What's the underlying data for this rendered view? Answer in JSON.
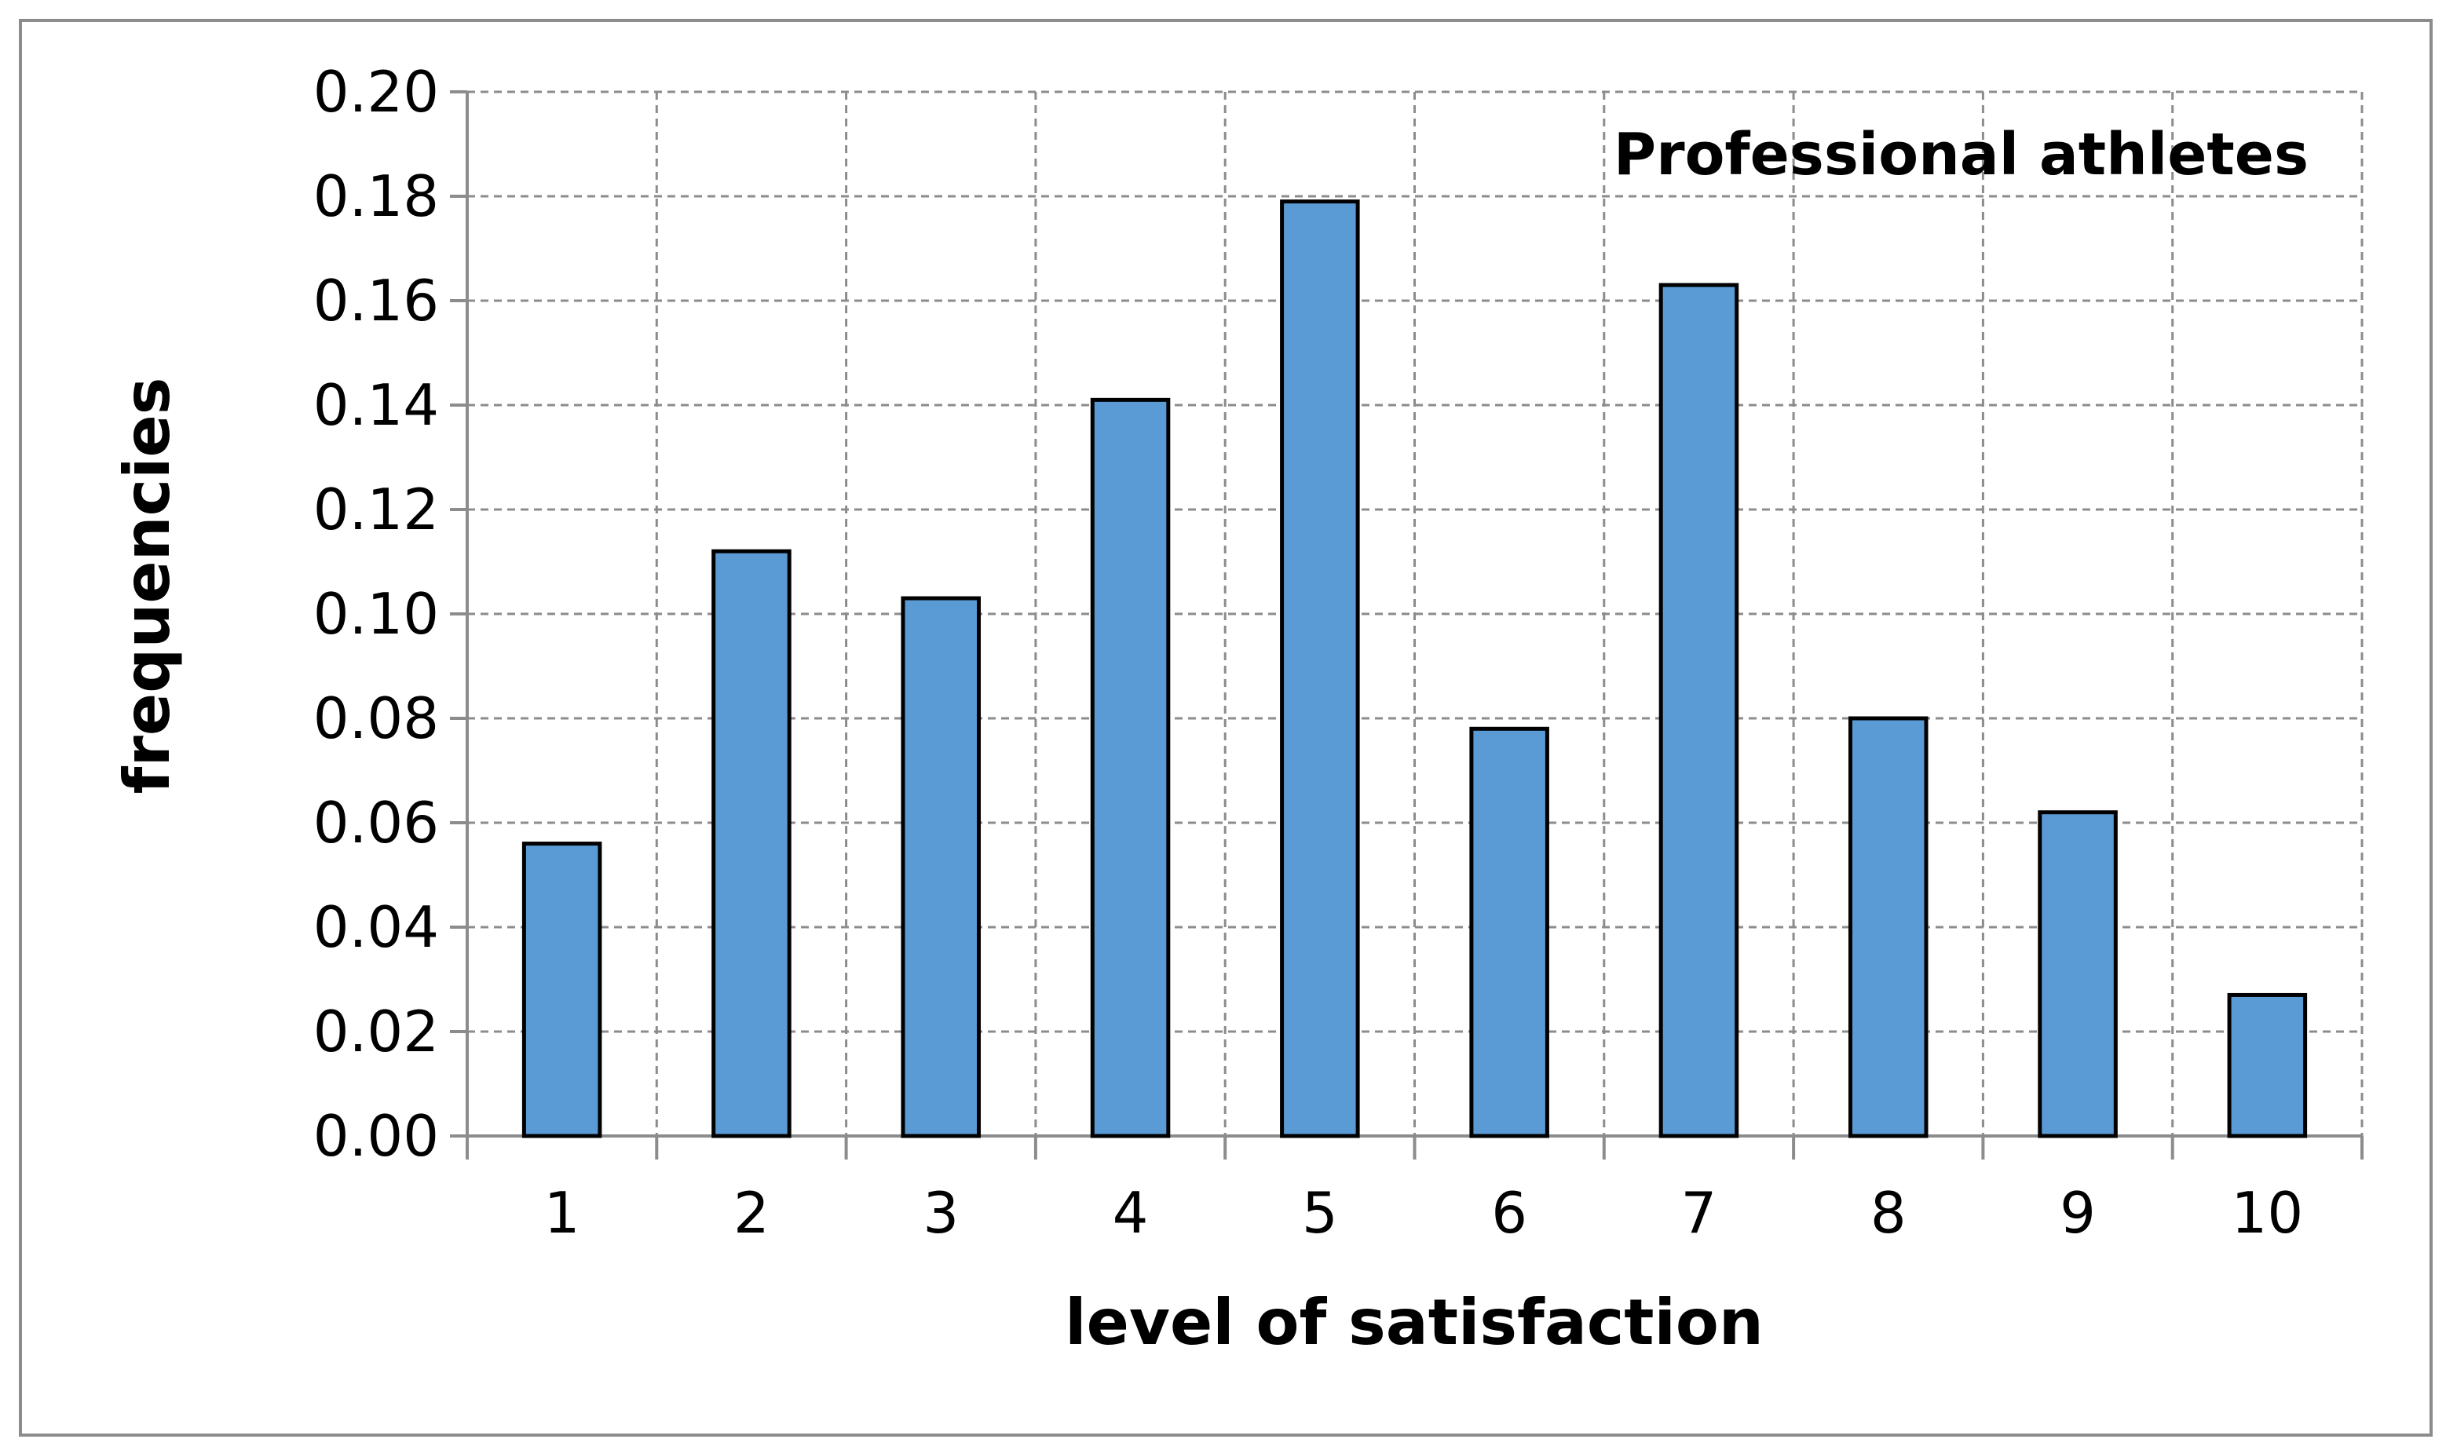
{
  "chart_data": {
    "type": "bar",
    "title": "",
    "annotation": "Professional athletes",
    "xlabel": "level of satisfaction",
    "ylabel": "frequencies",
    "categories": [
      "1",
      "2",
      "3",
      "4",
      "5",
      "6",
      "7",
      "8",
      "9",
      "10"
    ],
    "values": [
      0.056,
      0.112,
      0.103,
      0.141,
      0.179,
      0.078,
      0.163,
      0.08,
      0.062,
      0.027
    ],
    "ylim": [
      0,
      0.2
    ],
    "yticks": [
      0.0,
      0.02,
      0.04,
      0.06,
      0.08,
      0.1,
      0.12,
      0.14,
      0.16,
      0.18,
      0.2
    ],
    "ytick_labels": [
      "0.00",
      "0.02",
      "0.04",
      "0.06",
      "0.08",
      "0.10",
      "0.12",
      "0.14",
      "0.16",
      "0.18",
      "0.20"
    ],
    "grid": true,
    "grid_style": "dashed",
    "legend": "none",
    "colors": {
      "bar_fill": "#5b9bd5",
      "bar_stroke": "#000000",
      "grid": "#8c8c8c",
      "axis": "#8c8c8c",
      "frame": "#8c8c8c"
    }
  }
}
